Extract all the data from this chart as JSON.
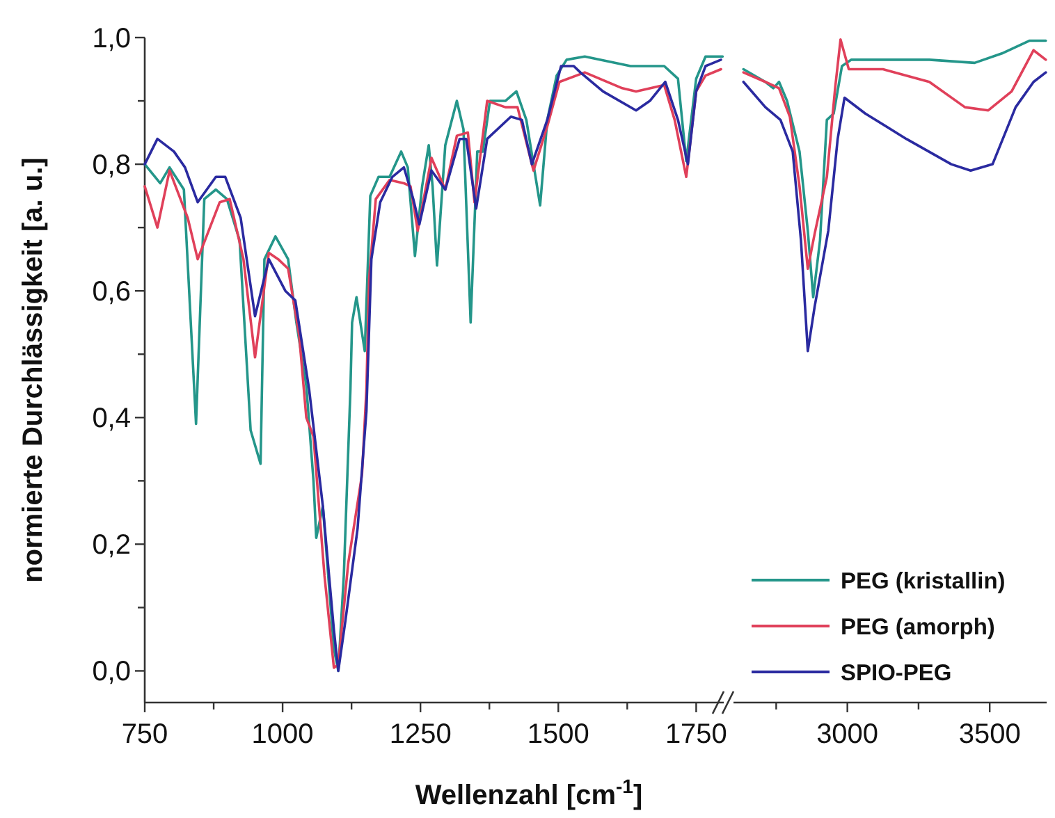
{
  "chart_data": [
    {
      "type": "line",
      "ylabel": "normierte Durchlässigkeit [a. u.]",
      "xlabel": "Wellenzahl [cm$^{-1}$]",
      "xlim": [
        750,
        1800
      ],
      "xticks": [
        750,
        {
          "value": 875,
          "label": null
        },
        1000,
        {
          "value": 1125,
          "label": null
        },
        1250,
        {
          "value": 1375,
          "label": null
        },
        1500,
        {
          "value": 1625,
          "label": null
        },
        1750
      ],
      "ylim": [
        -0.05,
        1.0
      ],
      "yticks": [
        {
          "value": 0,
          "label": "0,0"
        },
        {
          "value": 0.1,
          "label": null
        },
        {
          "value": 0.2,
          "label": "0,2"
        },
        {
          "value": 0.3,
          "label": null
        },
        {
          "value": 0.4,
          "label": "0,4"
        },
        {
          "value": 0.5,
          "label": null
        },
        {
          "value": 0.6,
          "label": "0,6"
        },
        {
          "value": 0.7,
          "label": null
        },
        {
          "value": 0.8,
          "label": "0,8"
        },
        {
          "value": 0.9,
          "label": null
        },
        {
          "value": 1.0,
          "label": "1,0"
        }
      ],
      "grid": false,
      "legend": false,
      "series": [
        {
          "color": "#24968a",
          "x": [
            750,
            778,
            795,
            821,
            843,
            858,
            879,
            899,
            922,
            942,
            960,
            967,
            987,
            1010,
            1025,
            1043,
            1056,
            1061,
            1073,
            1093,
            1101,
            1111,
            1123,
            1126,
            1134,
            1149,
            1159,
            1174,
            1194,
            1215,
            1227,
            1240,
            1253,
            1265,
            1272,
            1280,
            1295,
            1316,
            1328,
            1341,
            1353,
            1363,
            1376,
            1404,
            1424,
            1442,
            1467,
            1480,
            1497,
            1515,
            1548,
            1631,
            1692,
            1717,
            1732,
            1750,
            1767,
            1798
          ],
          "values": [
            0.8,
            0.77,
            0.795,
            0.76,
            0.39,
            0.745,
            0.76,
            0.745,
            0.68,
            0.38,
            0.327,
            0.65,
            0.686,
            0.65,
            0.55,
            0.45,
            0.3,
            0.21,
            0.26,
            0.035,
            0.0,
            0.15,
            0.445,
            0.55,
            0.59,
            0.505,
            0.75,
            0.78,
            0.78,
            0.82,
            0.795,
            0.655,
            0.765,
            0.83,
            0.765,
            0.64,
            0.83,
            0.9,
            0.855,
            0.55,
            0.82,
            0.82,
            0.9,
            0.9,
            0.915,
            0.87,
            0.735,
            0.87,
            0.94,
            0.965,
            0.97,
            0.955,
            0.955,
            0.935,
            0.805,
            0.935,
            0.97,
            0.97
          ]
        },
        {
          "color": "#e0405a",
          "x": [
            750,
            773,
            795,
            828,
            846,
            886,
            904,
            929,
            950,
            975,
            992,
            1010,
            1030,
            1043,
            1056,
            1076,
            1093,
            1101,
            1119,
            1144,
            1152,
            1157,
            1169,
            1194,
            1220,
            1232,
            1245,
            1270,
            1295,
            1316,
            1336,
            1348,
            1371,
            1404,
            1426,
            1455,
            1480,
            1502,
            1548,
            1616,
            1641,
            1692,
            1711,
            1732,
            1750,
            1767,
            1795
          ],
          "values": [
            0.765,
            0.7,
            0.79,
            0.715,
            0.65,
            0.74,
            0.745,
            0.65,
            0.495,
            0.66,
            0.65,
            0.635,
            0.53,
            0.4,
            0.37,
            0.15,
            0.005,
            0.01,
            0.17,
            0.31,
            0.445,
            0.62,
            0.745,
            0.775,
            0.77,
            0.765,
            0.695,
            0.81,
            0.76,
            0.845,
            0.85,
            0.74,
            0.9,
            0.89,
            0.89,
            0.79,
            0.86,
            0.93,
            0.945,
            0.92,
            0.915,
            0.925,
            0.87,
            0.78,
            0.915,
            0.94,
            0.95
          ]
        },
        {
          "color": "#2a2aa0",
          "x": [
            750,
            773,
            803,
            823,
            846,
            879,
            896,
            924,
            950,
            975,
            1005,
            1023,
            1048,
            1073,
            1093,
            1101,
            1114,
            1136,
            1152,
            1161,
            1177,
            1199,
            1220,
            1237,
            1248,
            1270,
            1295,
            1321,
            1333,
            1351,
            1371,
            1414,
            1434,
            1452,
            1480,
            1505,
            1528,
            1540,
            1581,
            1641,
            1666,
            1694,
            1717,
            1735,
            1750,
            1767,
            1795
          ],
          "values": [
            0.8,
            0.84,
            0.82,
            0.795,
            0.74,
            0.78,
            0.78,
            0.715,
            0.56,
            0.65,
            0.6,
            0.585,
            0.445,
            0.26,
            0.065,
            0.0,
            0.08,
            0.225,
            0.41,
            0.65,
            0.74,
            0.78,
            0.795,
            0.745,
            0.705,
            0.79,
            0.76,
            0.84,
            0.84,
            0.73,
            0.84,
            0.875,
            0.87,
            0.8,
            0.87,
            0.955,
            0.955,
            0.945,
            0.915,
            0.885,
            0.9,
            0.93,
            0.87,
            0.8,
            0.915,
            0.955,
            0.965
          ]
        }
      ]
    },
    {
      "type": "line",
      "tick_labels": "x",
      "xlim": [
        2600,
        3700
      ],
      "xticks": [
        {
          "value": 2750,
          "label": null
        },
        3000,
        {
          "value": 3250,
          "label": null
        },
        3500
      ],
      "ylim": [
        -0.05,
        1.0
      ],
      "grid": false,
      "legend": "bottom right",
      "series": [
        {
          "name": "PEG (kristallin)",
          "color": "#24968a",
          "x": [
            2635,
            2712,
            2740,
            2760,
            2788,
            2832,
            2861,
            2880,
            2904,
            2928,
            2952,
            2981,
            3014,
            3288,
            3447,
            3543,
            3639,
            3697
          ],
          "values": [
            0.95,
            0.93,
            0.92,
            0.93,
            0.9,
            0.82,
            0.695,
            0.59,
            0.68,
            0.87,
            0.88,
            0.955,
            0.965,
            0.965,
            0.96,
            0.975,
            0.995,
            0.995
          ]
        },
        {
          "name": "PEG (amorph)",
          "color": "#e0405a",
          "x": [
            2635,
            2712,
            2760,
            2798,
            2832,
            2861,
            2885,
            2928,
            2957,
            2976,
            3005,
            3125,
            3288,
            3413,
            3495,
            3577,
            3654,
            3697
          ],
          "values": [
            0.945,
            0.93,
            0.92,
            0.875,
            0.765,
            0.635,
            0.69,
            0.78,
            0.92,
            0.997,
            0.95,
            0.95,
            0.93,
            0.89,
            0.885,
            0.915,
            0.98,
            0.965
          ]
        },
        {
          "name": "SPIO-PEG",
          "color": "#2a2aa0",
          "x": [
            2635,
            2712,
            2765,
            2808,
            2837,
            2861,
            2885,
            2933,
            2966,
            2990,
            3063,
            3207,
            3365,
            3433,
            3510,
            3591,
            3654,
            3697
          ],
          "values": [
            0.93,
            0.89,
            0.87,
            0.82,
            0.68,
            0.505,
            0.575,
            0.695,
            0.84,
            0.905,
            0.88,
            0.84,
            0.8,
            0.79,
            0.8,
            0.89,
            0.93,
            0.945
          ]
        }
      ]
    }
  ]
}
